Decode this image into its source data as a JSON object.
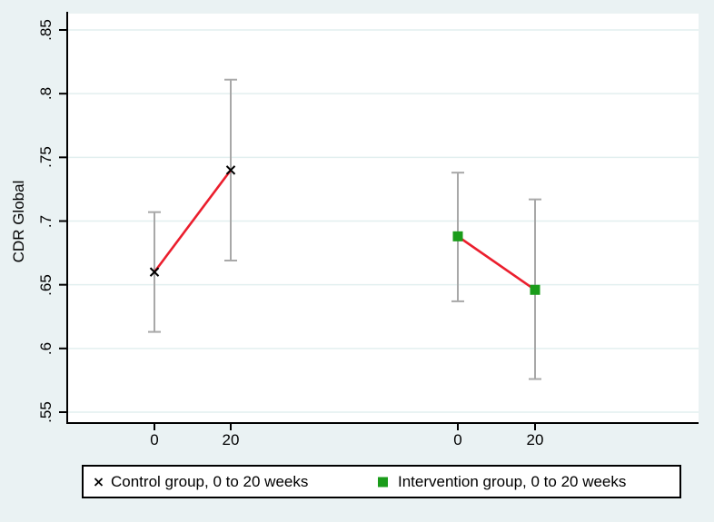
{
  "figure": {
    "y_axis_title": "CDR Global",
    "y_tick_labels": [
      ".85",
      ".8",
      ".75",
      ".7",
      ".65",
      ".6",
      ".55"
    ],
    "x_tick_labels": [
      "0",
      "20",
      "0",
      "20"
    ],
    "legend": {
      "items": [
        {
          "marker": "x",
          "label": "Control group, 0 to 20 weeks"
        },
        {
          "marker": "square",
          "label": "Intervention group, 0 to 20 weeks"
        }
      ]
    }
  },
  "chart_data": {
    "type": "line",
    "title": "",
    "xlabel": "",
    "ylabel": "CDR Global",
    "ylim": [
      0.55,
      0.85
    ],
    "yticks": [
      0.85,
      0.8,
      0.75,
      0.7,
      0.65,
      0.6,
      0.55
    ],
    "x_tick_values_weeks": [
      0,
      20,
      0,
      20
    ],
    "series": [
      {
        "name": "Control group, 0 to 20 weeks",
        "group": "Control",
        "weeks": [
          0,
          20
        ],
        "marker": "x",
        "marker_color": "#000000",
        "means": [
          0.66,
          0.74
        ],
        "ci_low": [
          0.613,
          0.669
        ],
        "ci_high": [
          0.707,
          0.811
        ]
      },
      {
        "name": "Intervention group, 0 to 20 weeks",
        "group": "Intervention",
        "weeks": [
          0,
          20
        ],
        "marker": "square",
        "marker_color": "#1a9c1a",
        "means": [
          0.688,
          0.646
        ],
        "ci_low": [
          0.637,
          0.576
        ],
        "ci_high": [
          0.738,
          0.717
        ]
      }
    ],
    "line_color": "#eb1e2d",
    "errorbar_color": "#a8a8a8",
    "grid": true,
    "grid_color": "#e2efef",
    "background_color": "#eaf2f3",
    "plot_background_color": "#ffffff",
    "axis_color": "#000000",
    "legend_position": "bottom"
  }
}
